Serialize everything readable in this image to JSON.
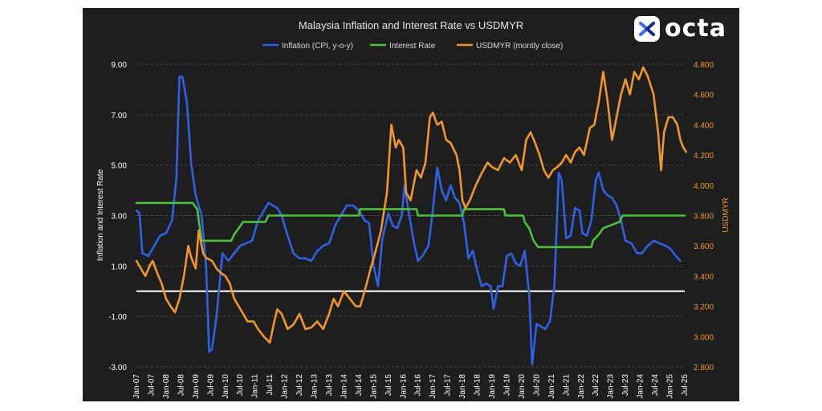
{
  "brand": {
    "name": "octa",
    "accent": "#3b6cf6"
  },
  "chart_data": {
    "type": "line",
    "title": "Malaysia Inflation and Interest Rate vs USDMYR",
    "ylabel": "Inflation and Interest Rate",
    "y2label": "USDMYR",
    "ylim": [
      -3,
      9
    ],
    "y2lim": [
      2.8,
      4.8
    ],
    "yticks": [
      "9.00",
      "7.00",
      "5.00",
      "3.00",
      "1.00",
      "-1.00",
      "-3.00"
    ],
    "y2ticks": [
      "4.800",
      "4.600",
      "4.400",
      "4.200",
      "4.000",
      "3.800",
      "3.600",
      "3.400",
      "3.200",
      "3.000",
      "2.800"
    ],
    "xticks": [
      "Jan-07",
      "Jul-07",
      "Jan-08",
      "Jul-08",
      "Jan-09",
      "Jul-09",
      "Jan-10",
      "Jul-10",
      "Jan-11",
      "Jul-11",
      "Jan-12",
      "Jul-12",
      "Jan-13",
      "Jul-13",
      "Jan-14",
      "Jul-14",
      "Jan-15",
      "Jul-15",
      "Jan-16",
      "Jul-16",
      "Jan-17",
      "Jul-17",
      "Jan-18",
      "Jul-18",
      "Jan-19",
      "Jul-19",
      "Jan-20",
      "Jul-20",
      "Jan-21",
      "Jul-21",
      "Jan-22",
      "Jul-22",
      "Jan-23",
      "Jul-23",
      "Jan-24",
      "Jul-24",
      "Jan-25",
      "Jul-25"
    ],
    "xrange": [
      2007.0,
      2025.5
    ],
    "legend_position": "top",
    "zero_line": 0,
    "grid": true,
    "series": [
      {
        "name": "Inflation (CPI, y-o-y)",
        "color": "#2e62e6",
        "axis": "left",
        "points": [
          [
            2007.0,
            3.2
          ],
          [
            2007.1,
            3.1
          ],
          [
            2007.2,
            1.5
          ],
          [
            2007.4,
            1.4
          ],
          [
            2007.6,
            1.8
          ],
          [
            2007.8,
            2.2
          ],
          [
            2008.0,
            2.3
          ],
          [
            2008.2,
            2.8
          ],
          [
            2008.35,
            4.5
          ],
          [
            2008.45,
            8.5
          ],
          [
            2008.55,
            8.5
          ],
          [
            2008.7,
            7.5
          ],
          [
            2008.85,
            5.0
          ],
          [
            2009.0,
            3.8
          ],
          [
            2009.2,
            3.0
          ],
          [
            2009.35,
            1.0
          ],
          [
            2009.45,
            -2.4
          ],
          [
            2009.55,
            -2.3
          ],
          [
            2009.7,
            -1.0
          ],
          [
            2009.9,
            1.5
          ],
          [
            2010.1,
            1.2
          ],
          [
            2010.3,
            1.5
          ],
          [
            2010.5,
            1.8
          ],
          [
            2010.7,
            1.9
          ],
          [
            2010.9,
            2.0
          ],
          [
            2011.1,
            2.8
          ],
          [
            2011.3,
            3.2
          ],
          [
            2011.45,
            3.5
          ],
          [
            2011.6,
            3.4
          ],
          [
            2011.75,
            3.3
          ],
          [
            2011.9,
            3.0
          ],
          [
            2012.1,
            2.2
          ],
          [
            2012.3,
            1.5
          ],
          [
            2012.5,
            1.3
          ],
          [
            2012.7,
            1.3
          ],
          [
            2012.9,
            1.2
          ],
          [
            2013.1,
            1.6
          ],
          [
            2013.3,
            1.8
          ],
          [
            2013.5,
            1.9
          ],
          [
            2013.7,
            2.6
          ],
          [
            2013.9,
            3.0
          ],
          [
            2014.1,
            3.4
          ],
          [
            2014.3,
            3.4
          ],
          [
            2014.5,
            3.2
          ],
          [
            2014.7,
            2.8
          ],
          [
            2014.85,
            2.7
          ],
          [
            2015.0,
            1.0
          ],
          [
            2015.15,
            0.2
          ],
          [
            2015.3,
            2.1
          ],
          [
            2015.5,
            3.1
          ],
          [
            2015.65,
            2.6
          ],
          [
            2015.8,
            2.5
          ],
          [
            2015.95,
            3.0
          ],
          [
            2016.05,
            4.2
          ],
          [
            2016.15,
            3.4
          ],
          [
            2016.35,
            2.0
          ],
          [
            2016.5,
            1.2
          ],
          [
            2016.65,
            1.4
          ],
          [
            2016.85,
            1.8
          ],
          [
            2017.0,
            3.2
          ],
          [
            2017.15,
            4.9
          ],
          [
            2017.3,
            4.0
          ],
          [
            2017.45,
            3.6
          ],
          [
            2017.6,
            4.2
          ],
          [
            2017.75,
            3.7
          ],
          [
            2017.9,
            3.5
          ],
          [
            2018.05,
            2.7
          ],
          [
            2018.2,
            1.3
          ],
          [
            2018.35,
            1.6
          ],
          [
            2018.5,
            0.8
          ],
          [
            2018.65,
            0.2
          ],
          [
            2018.8,
            0.3
          ],
          [
            2018.95,
            0.2
          ],
          [
            2019.05,
            -0.7
          ],
          [
            2019.2,
            0.2
          ],
          [
            2019.35,
            0.2
          ],
          [
            2019.5,
            1.4
          ],
          [
            2019.65,
            1.5
          ],
          [
            2019.8,
            1.1
          ],
          [
            2019.95,
            1.0
          ],
          [
            2020.1,
            1.6
          ],
          [
            2020.25,
            -0.1
          ],
          [
            2020.35,
            -2.9
          ],
          [
            2020.5,
            -1.3
          ],
          [
            2020.65,
            -1.4
          ],
          [
            2020.8,
            -1.5
          ],
          [
            2020.95,
            -1.2
          ],
          [
            2021.1,
            0.2
          ],
          [
            2021.25,
            4.7
          ],
          [
            2021.35,
            4.4
          ],
          [
            2021.5,
            2.1
          ],
          [
            2021.65,
            2.2
          ],
          [
            2021.8,
            3.3
          ],
          [
            2021.95,
            3.2
          ],
          [
            2022.05,
            2.3
          ],
          [
            2022.2,
            2.2
          ],
          [
            2022.35,
            2.8
          ],
          [
            2022.5,
            4.4
          ],
          [
            2022.6,
            4.7
          ],
          [
            2022.75,
            4.0
          ],
          [
            2022.9,
            3.8
          ],
          [
            2023.05,
            3.7
          ],
          [
            2023.2,
            3.4
          ],
          [
            2023.35,
            2.8
          ],
          [
            2023.5,
            2.0
          ],
          [
            2023.7,
            1.9
          ],
          [
            2023.9,
            1.5
          ],
          [
            2024.05,
            1.5
          ],
          [
            2024.25,
            1.8
          ],
          [
            2024.45,
            2.0
          ],
          [
            2024.65,
            1.9
          ],
          [
            2024.85,
            1.8
          ],
          [
            2025.0,
            1.7
          ],
          [
            2025.2,
            1.4
          ],
          [
            2025.35,
            1.2
          ]
        ]
      },
      {
        "name": "Interest Rate",
        "color": "#4cc23c",
        "axis": "left",
        "points": [
          [
            2007.0,
            3.5
          ],
          [
            2008.9,
            3.5
          ],
          [
            2009.05,
            3.25
          ],
          [
            2009.2,
            2.0
          ],
          [
            2010.2,
            2.0
          ],
          [
            2010.3,
            2.25
          ],
          [
            2010.45,
            2.5
          ],
          [
            2010.6,
            2.75
          ],
          [
            2011.35,
            2.75
          ],
          [
            2011.45,
            3.0
          ],
          [
            2014.5,
            3.0
          ],
          [
            2014.55,
            3.25
          ],
          [
            2016.45,
            3.25
          ],
          [
            2016.5,
            3.0
          ],
          [
            2018.0,
            3.0
          ],
          [
            2018.05,
            3.25
          ],
          [
            2019.4,
            3.25
          ],
          [
            2019.45,
            3.0
          ],
          [
            2020.05,
            3.0
          ],
          [
            2020.1,
            2.75
          ],
          [
            2020.25,
            2.5
          ],
          [
            2020.4,
            2.0
          ],
          [
            2020.55,
            1.75
          ],
          [
            2022.35,
            1.75
          ],
          [
            2022.4,
            2.0
          ],
          [
            2022.6,
            2.25
          ],
          [
            2022.75,
            2.5
          ],
          [
            2023.3,
            2.75
          ],
          [
            2023.4,
            3.0
          ],
          [
            2025.5,
            3.0
          ]
        ]
      },
      {
        "name": "USDMYR (montly close)",
        "color": "#f0962c",
        "axis": "right",
        "points": [
          [
            2007.0,
            3.5
          ],
          [
            2007.15,
            3.45
          ],
          [
            2007.3,
            3.4
          ],
          [
            2007.45,
            3.47
          ],
          [
            2007.55,
            3.5
          ],
          [
            2007.7,
            3.42
          ],
          [
            2007.85,
            3.35
          ],
          [
            2008.0,
            3.25
          ],
          [
            2008.15,
            3.2
          ],
          [
            2008.3,
            3.16
          ],
          [
            2008.45,
            3.25
          ],
          [
            2008.6,
            3.4
          ],
          [
            2008.75,
            3.6
          ],
          [
            2008.85,
            3.52
          ],
          [
            2009.0,
            3.45
          ],
          [
            2009.1,
            3.7
          ],
          [
            2009.25,
            3.55
          ],
          [
            2009.35,
            3.52
          ],
          [
            2009.55,
            3.5
          ],
          [
            2009.7,
            3.45
          ],
          [
            2009.85,
            3.42
          ],
          [
            2010.0,
            3.4
          ],
          [
            2010.15,
            3.35
          ],
          [
            2010.3,
            3.25
          ],
          [
            2010.45,
            3.2
          ],
          [
            2010.6,
            3.15
          ],
          [
            2010.75,
            3.1
          ],
          [
            2010.95,
            3.1
          ],
          [
            2011.1,
            3.05
          ],
          [
            2011.3,
            3.0
          ],
          [
            2011.5,
            2.96
          ],
          [
            2011.65,
            3.1
          ],
          [
            2011.75,
            3.18
          ],
          [
            2011.9,
            3.15
          ],
          [
            2012.1,
            3.05
          ],
          [
            2012.3,
            3.08
          ],
          [
            2012.5,
            3.15
          ],
          [
            2012.7,
            3.05
          ],
          [
            2012.9,
            3.06
          ],
          [
            2013.1,
            3.1
          ],
          [
            2013.3,
            3.05
          ],
          [
            2013.5,
            3.15
          ],
          [
            2013.65,
            3.25
          ],
          [
            2013.8,
            3.2
          ],
          [
            2014.0,
            3.3
          ],
          [
            2014.2,
            3.25
          ],
          [
            2014.4,
            3.2
          ],
          [
            2014.55,
            3.2
          ],
          [
            2014.7,
            3.3
          ],
          [
            2014.9,
            3.45
          ],
          [
            2015.05,
            3.55
          ],
          [
            2015.25,
            3.7
          ],
          [
            2015.45,
            3.95
          ],
          [
            2015.6,
            4.4
          ],
          [
            2015.75,
            4.25
          ],
          [
            2015.85,
            4.3
          ],
          [
            2016.0,
            4.25
          ],
          [
            2016.1,
            3.95
          ],
          [
            2016.25,
            3.9
          ],
          [
            2016.45,
            4.1
          ],
          [
            2016.6,
            4.05
          ],
          [
            2016.75,
            4.15
          ],
          [
            2016.9,
            4.45
          ],
          [
            2017.0,
            4.48
          ],
          [
            2017.15,
            4.4
          ],
          [
            2017.3,
            4.42
          ],
          [
            2017.45,
            4.3
          ],
          [
            2017.6,
            4.28
          ],
          [
            2017.8,
            4.2
          ],
          [
            2017.9,
            4.1
          ],
          [
            2018.0,
            3.9
          ],
          [
            2018.1,
            3.85
          ],
          [
            2018.25,
            3.9
          ],
          [
            2018.45,
            4.0
          ],
          [
            2018.65,
            4.08
          ],
          [
            2018.85,
            4.15
          ],
          [
            2019.0,
            4.12
          ],
          [
            2019.2,
            4.1
          ],
          [
            2019.4,
            4.18
          ],
          [
            2019.6,
            4.15
          ],
          [
            2019.8,
            4.2
          ],
          [
            2020.0,
            4.1
          ],
          [
            2020.15,
            4.3
          ],
          [
            2020.3,
            4.35
          ],
          [
            2020.45,
            4.28
          ],
          [
            2020.6,
            4.2
          ],
          [
            2020.75,
            4.1
          ],
          [
            2020.9,
            4.05
          ],
          [
            2021.05,
            4.1
          ],
          [
            2021.2,
            4.12
          ],
          [
            2021.35,
            4.15
          ],
          [
            2021.5,
            4.2
          ],
          [
            2021.65,
            4.15
          ],
          [
            2021.8,
            4.22
          ],
          [
            2021.95,
            4.25
          ],
          [
            2022.1,
            4.2
          ],
          [
            2022.3,
            4.38
          ],
          [
            2022.45,
            4.4
          ],
          [
            2022.6,
            4.55
          ],
          [
            2022.75,
            4.75
          ],
          [
            2022.9,
            4.55
          ],
          [
            2023.05,
            4.3
          ],
          [
            2023.2,
            4.45
          ],
          [
            2023.35,
            4.6
          ],
          [
            2023.5,
            4.7
          ],
          [
            2023.65,
            4.6
          ],
          [
            2023.8,
            4.75
          ],
          [
            2023.95,
            4.7
          ],
          [
            2024.1,
            4.78
          ],
          [
            2024.25,
            4.72
          ],
          [
            2024.45,
            4.6
          ],
          [
            2024.6,
            4.35
          ],
          [
            2024.7,
            4.1
          ],
          [
            2024.8,
            4.35
          ],
          [
            2024.95,
            4.45
          ],
          [
            2025.1,
            4.45
          ],
          [
            2025.25,
            4.4
          ],
          [
            2025.35,
            4.3
          ],
          [
            2025.45,
            4.25
          ],
          [
            2025.55,
            4.22
          ]
        ]
      }
    ]
  }
}
